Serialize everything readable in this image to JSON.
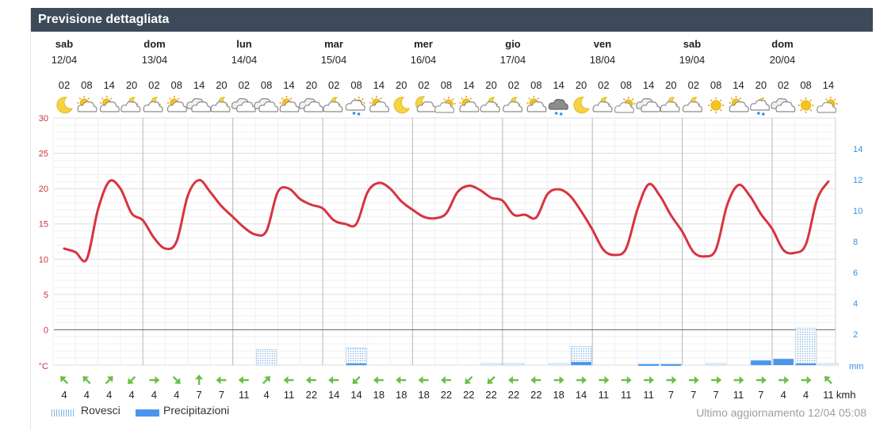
{
  "header": {
    "title": "Previsione dettagliata"
  },
  "days": [
    {
      "name": "sab",
      "date": "12/04"
    },
    {
      "name": "dom",
      "date": "13/04"
    },
    {
      "name": "lun",
      "date": "14/04"
    },
    {
      "name": "mar",
      "date": "15/04"
    },
    {
      "name": "mer",
      "date": "16/04"
    },
    {
      "name": "gio",
      "date": "17/04"
    },
    {
      "name": "ven",
      "date": "18/04"
    },
    {
      "name": "sab",
      "date": "19/04"
    },
    {
      "name": "dom",
      "date": "20/04"
    }
  ],
  "hours": [
    "02",
    "08",
    "14",
    "20",
    "02",
    "08",
    "14",
    "20",
    "02",
    "08",
    "14",
    "20",
    "02",
    "08",
    "14",
    "20",
    "02",
    "08",
    "14",
    "20",
    "02",
    "08",
    "14",
    "20",
    "02",
    "08",
    "14",
    "20",
    "02",
    "08",
    "14",
    "20",
    "02",
    "08",
    "14"
  ],
  "weather_icons": [
    "moon-icon",
    "partly-cloudy-day-icon",
    "partly-cloudy-day-icon",
    "partly-cloudy-night-icon",
    "partly-cloudy-night-icon",
    "partly-cloudy-day-icon",
    "cloudy-icon",
    "partly-cloudy-night-icon",
    "cloudy-icon",
    "cloudy-icon",
    "partly-cloudy-day-icon",
    "cloudy-icon",
    "partly-cloudy-night-icon",
    "rain-showers-icon",
    "partly-cloudy-day-icon",
    "moon-icon",
    "moon-cloud-icon",
    "partly-sunny-icon",
    "partly-cloudy-day-icon",
    "partly-cloudy-night-icon",
    "partly-cloudy-night-icon",
    "partly-cloudy-day-icon",
    "thunder-rain-icon",
    "moon-icon",
    "partly-cloudy-night-icon",
    "partly-sunny-icon",
    "cloudy-icon",
    "partly-cloudy-night-icon",
    "partly-cloudy-night-icon",
    "sun-icon",
    "partly-cloudy-day-icon",
    "rain-night-icon",
    "cloudy-icon",
    "sun-icon",
    "partly-sunny-icon"
  ],
  "wind_speeds": [
    "4",
    "4",
    "4",
    "4",
    "4",
    "4",
    "7",
    "7",
    "11",
    "4",
    "11",
    "22",
    "14",
    "14",
    "18",
    "18",
    "18",
    "22",
    "22",
    "22",
    "22",
    "22",
    "18",
    "14",
    "11",
    "11",
    "11",
    "7",
    "7",
    "7",
    "11",
    "7",
    "4",
    "4",
    "11"
  ],
  "wind_directions_deg": [
    315,
    315,
    45,
    225,
    90,
    135,
    0,
    270,
    270,
    45,
    270,
    270,
    270,
    225,
    270,
    270,
    270,
    270,
    225,
    225,
    270,
    270,
    90,
    90,
    90,
    90,
    90,
    90,
    90,
    90,
    90,
    90,
    90,
    90,
    315
  ],
  "wind_unit": "kmh",
  "temp_axis": {
    "label": "°C",
    "ticks": [
      "30",
      "25",
      "20",
      "15",
      "10",
      "5",
      "0"
    ],
    "color": "#cc3340"
  },
  "precip_axis": {
    "label": "mm",
    "ticks": [
      "14",
      "12",
      "10",
      "8",
      "6",
      "4",
      "2"
    ],
    "color": "#3a8fdc"
  },
  "chart_data": {
    "type": "line",
    "x": [
      "12/04 02",
      "12/04 05",
      "12/04 08",
      "12/04 11",
      "12/04 14",
      "12/04 17",
      "12/04 20",
      "12/04 23",
      "13/04 02",
      "13/04 05",
      "13/04 08",
      "13/04 11",
      "13/04 14",
      "13/04 17",
      "13/04 20",
      "13/04 23",
      "14/04 02",
      "14/04 05",
      "14/04 08",
      "14/04 11",
      "14/04 14",
      "14/04 17",
      "14/04 20",
      "14/04 23",
      "15/04 02",
      "15/04 05",
      "15/04 08",
      "15/04 11",
      "15/04 14",
      "15/04 17",
      "15/04 20",
      "15/04 23",
      "16/04 02",
      "16/04 05",
      "16/04 08",
      "16/04 11",
      "16/04 14",
      "16/04 17",
      "16/04 20",
      "16/04 23",
      "17/04 02",
      "17/04 05",
      "17/04 08",
      "17/04 11",
      "17/04 14",
      "17/04 17",
      "17/04 20",
      "17/04 23",
      "18/04 02",
      "18/04 05",
      "18/04 08",
      "18/04 11",
      "18/04 14",
      "18/04 17",
      "18/04 20",
      "18/04 23",
      "19/04 02",
      "19/04 05",
      "19/04 08",
      "19/04 11",
      "19/04 14",
      "19/04 17",
      "19/04 20",
      "19/04 23",
      "20/04 02",
      "20/04 05",
      "20/04 08",
      "20/04 11",
      "20/04 14"
    ],
    "series": [
      {
        "name": "Temperatura",
        "unit": "°C",
        "axis": "left",
        "color": "#d9333f",
        "values": [
          11.5,
          11,
          10,
          17,
          21,
          20,
          16.5,
          15.5,
          13,
          11.5,
          12.5,
          19,
          21.2,
          19.5,
          17.5,
          16,
          14.5,
          13.5,
          14,
          19.5,
          20,
          18.5,
          17.7,
          17.2,
          15.5,
          15,
          15,
          19.5,
          20.8,
          20,
          18.2,
          17,
          16,
          15.8,
          16.5,
          19.5,
          20.4,
          19.8,
          18.7,
          18.3,
          16.3,
          16.3,
          15.9,
          19.2,
          19.9,
          19,
          16.8,
          14.2,
          11.3,
          10.6,
          11.5,
          17,
          20.6,
          19,
          16.2,
          13.9,
          11,
          10.4,
          11.4,
          17.7,
          20.5,
          19,
          16.4,
          14.3,
          11.3,
          10.9,
          12.1,
          18.5,
          21
        ]
      },
      {
        "name": "Rovesci",
        "unit": "mm",
        "axis": "right",
        "type": "bar",
        "color": "#7fb2e6",
        "values": [
          0,
          0,
          0,
          0,
          0,
          0,
          0,
          0,
          0,
          0,
          0,
          0,
          0,
          0,
          0,
          0,
          0,
          0,
          0,
          0,
          0,
          0,
          0,
          0,
          0,
          0,
          0,
          0,
          0,
          0,
          0,
          0,
          0,
          0,
          0,
          0,
          0,
          0,
          0,
          0,
          0,
          0,
          0,
          0,
          0,
          0,
          0,
          0,
          0,
          0,
          0,
          0,
          0,
          0,
          0,
          0,
          0,
          0,
          0,
          0,
          0,
          0,
          0,
          0,
          0,
          0,
          0,
          0,
          0
        ],
        "bars": [
          0,
          0,
          0,
          0,
          0,
          0,
          0,
          0,
          0,
          0,
          0,
          0,
          0,
          0,
          0,
          0,
          0,
          0,
          0,
          0,
          0,
          0,
          0,
          0,
          0,
          0,
          0,
          0,
          0,
          0,
          0,
          0,
          0,
          0,
          0,
          0,
          0,
          0,
          0,
          0,
          0,
          0,
          0,
          0,
          0,
          0,
          0,
          0,
          0,
          0,
          0,
          0,
          0,
          0,
          0,
          0,
          0,
          0,
          0,
          0,
          0,
          0,
          0,
          0,
          0,
          0,
          0,
          0,
          0
        ]
      },
      {
        "name": "Precipitazioni",
        "unit": "mm",
        "axis": "right",
        "type": "bar",
        "color": "#4a95ec",
        "values": [
          0,
          0,
          0,
          0,
          0,
          0,
          0,
          0,
          0,
          0,
          0,
          0,
          0,
          0,
          0,
          0,
          0,
          0,
          0,
          0,
          0,
          0,
          0,
          0,
          0,
          0,
          0,
          0,
          0,
          0,
          0,
          0,
          0,
          0,
          0,
          0,
          0,
          0,
          0,
          0,
          0,
          0,
          0,
          0,
          0,
          0,
          0,
          0,
          0,
          0,
          0,
          0,
          0,
          0,
          0,
          0,
          0,
          0,
          0,
          0,
          0,
          0,
          0,
          0,
          0,
          0,
          0,
          0,
          0
        ]
      }
    ],
    "precipitation_6h": {
      "rovesci": [
        0,
        0,
        0,
        0,
        0,
        0,
        0,
        0,
        0,
        1.0,
        0,
        0,
        0,
        1.1,
        0,
        0,
        0,
        0,
        0,
        0.1,
        0.1,
        0,
        0.1,
        1.2,
        0,
        0,
        0.1,
        0.1,
        0,
        0.1,
        0,
        0.2,
        0,
        2.4,
        0.1
      ],
      "precipitazioni": [
        0,
        0,
        0,
        0,
        0,
        0,
        0,
        0,
        0,
        0,
        0,
        0,
        0,
        0.1,
        0,
        0,
        0,
        0,
        0,
        0,
        0,
        0,
        0,
        0.2,
        0,
        0,
        0.05,
        0.05,
        0,
        0,
        0,
        0.3,
        0.4,
        0.1,
        0
      ]
    },
    "ylim_left": [
      -5,
      30
    ],
    "ylim_right": [
      0,
      14
    ],
    "ylabel_left": "°C",
    "ylabel_right": "mm",
    "grid": true
  },
  "legend": {
    "rovesci": "Rovesci",
    "precipitazioni": "Precipitazioni"
  },
  "update": {
    "text": "Ultimo aggiornamento 12/04 05:08"
  }
}
